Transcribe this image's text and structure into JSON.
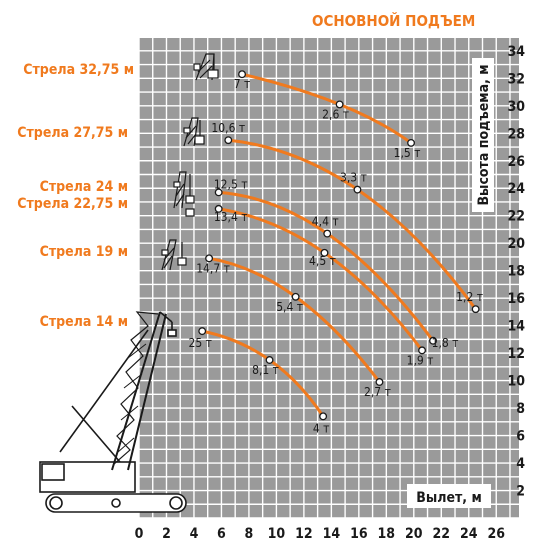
{
  "chart_data": {
    "type": "line",
    "title": "ОСНОВНОЙ ПОДЪЕМ",
    "xlabel": "Вылет, м",
    "ylabel": "Высота подъема, м",
    "xlim": [
      0,
      26
    ],
    "ylim": [
      0,
      34
    ],
    "xticks": [
      "0",
      "2",
      "4",
      "6",
      "8",
      "10",
      "12",
      "14",
      "16",
      "18",
      "20",
      "22",
      "24",
      "26"
    ],
    "yticks": [
      "2",
      "4",
      "6",
      "8",
      "10",
      "12",
      "14",
      "16",
      "18",
      "20",
      "22",
      "24",
      "26",
      "28",
      "30",
      "32",
      "34"
    ],
    "grid": true,
    "series": [
      {
        "name": "Стрела 32,75 м",
        "points": [
          {
            "x": 7.5,
            "y": 32.3,
            "label": "7 т"
          },
          {
            "x": 14.6,
            "y": 30.1,
            "label": "2,6 т"
          },
          {
            "x": 19.8,
            "y": 27.3,
            "label": "1,5 т"
          }
        ]
      },
      {
        "name": "Стрела 27,75 м",
        "points": [
          {
            "x": 6.5,
            "y": 27.5,
            "label": "10,6 т"
          },
          {
            "x": 15.9,
            "y": 23.9,
            "label": "3,3 т"
          },
          {
            "x": 24.5,
            "y": 15.2,
            "label": "1,2 т"
          }
        ]
      },
      {
        "name": "Стрела 24 м",
        "points": [
          {
            "x": 5.8,
            "y": 23.7,
            "label": "12,5 т"
          },
          {
            "x": 13.7,
            "y": 20.7,
            "label": "4,4 т"
          },
          {
            "x": 21.4,
            "y": 12.9,
            "label": "1,8 т"
          }
        ]
      },
      {
        "name": "Стрела 22,75 м",
        "points": [
          {
            "x": 5.8,
            "y": 22.5,
            "label": "13,4 т"
          },
          {
            "x": 13.5,
            "y": 19.3,
            "label": "4,5 т"
          },
          {
            "x": 20.6,
            "y": 12.2,
            "label": "1,9 т"
          }
        ]
      },
      {
        "name": "Стрела 19 м",
        "points": [
          {
            "x": 5.1,
            "y": 18.9,
            "label": "14,7 т"
          },
          {
            "x": 11.4,
            "y": 16.1,
            "label": "5,4 т"
          },
          {
            "x": 17.5,
            "y": 9.9,
            "label": "2,7 т"
          }
        ]
      },
      {
        "name": "Стрела 14 м",
        "points": [
          {
            "x": 4.6,
            "y": 13.6,
            "label": "25 т"
          },
          {
            "x": 9.5,
            "y": 11.5,
            "label": "8,1 т"
          },
          {
            "x": 13.4,
            "y": 7.4,
            "label": "4 т"
          }
        ]
      }
    ]
  },
  "colors": {
    "curve": "#f07a1e",
    "accent": "#f07a1e",
    "grid_background": "#9a9a9a",
    "grid_lines": "#ffffff"
  }
}
